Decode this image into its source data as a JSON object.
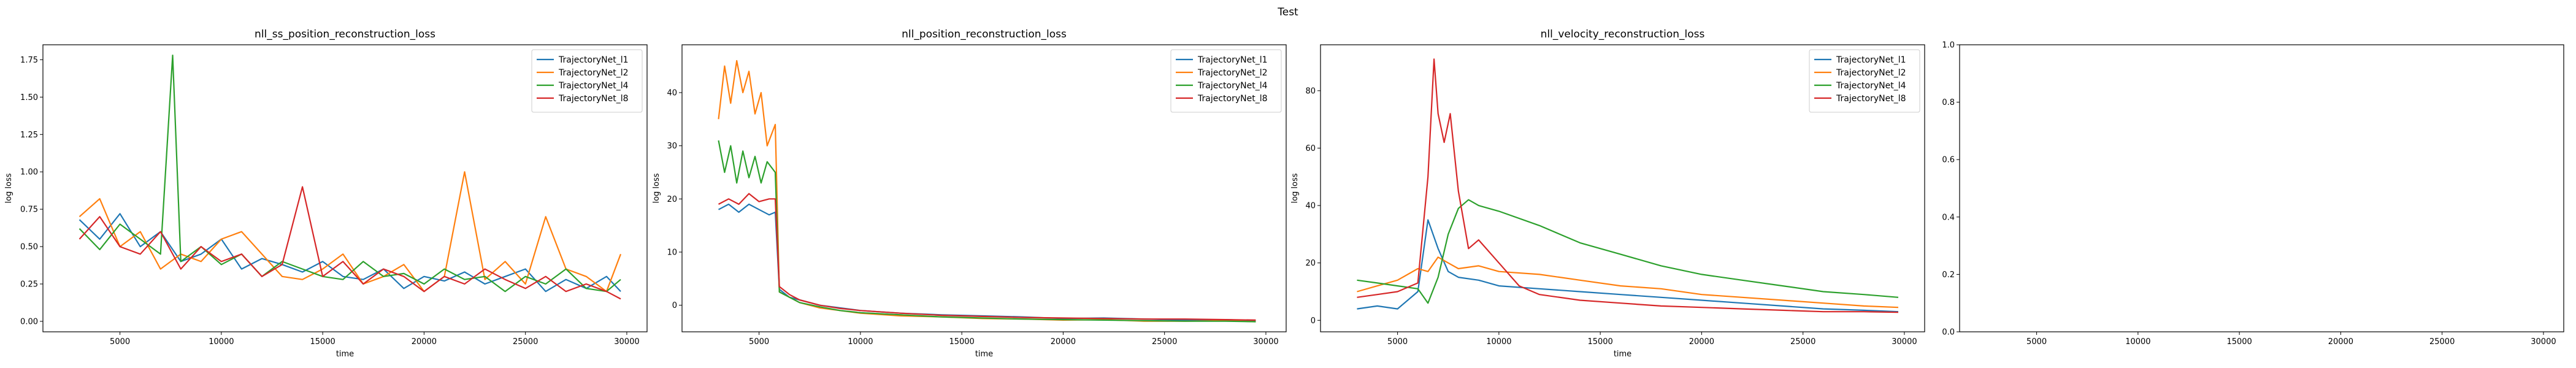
{
  "figure": {
    "suptitle": "Test"
  },
  "chart_data": [
    {
      "type": "line",
      "title": "nll_ss_position_reconstruction_loss",
      "xlabel": "time",
      "ylabel": "log loss",
      "xlim": [
        1200,
        31000
      ],
      "ylim": [
        -0.07,
        1.85
      ],
      "xticks": [
        5000,
        10000,
        15000,
        20000,
        25000,
        30000
      ],
      "yticks": [
        0.0,
        0.25,
        0.5,
        0.75,
        1.0,
        1.25,
        1.5,
        1.75
      ],
      "ytick_labels": [
        "0.00",
        "0.25",
        "0.50",
        "0.75",
        "1.00",
        "1.25",
        "1.50",
        "1.75"
      ],
      "legend_position": "upper right",
      "series": [
        {
          "name": "TrajectoryNet_l1",
          "color": "#1f77b4",
          "x": [
            3000,
            4000,
            5000,
            6000,
            7000,
            8000,
            9000,
            10000,
            11000,
            12000,
            13000,
            14000,
            15000,
            16000,
            17000,
            18000,
            19000,
            20000,
            21000,
            22000,
            23000,
            24000,
            25000,
            26000,
            27000,
            28000,
            29000,
            29700
          ],
          "y": [
            0.68,
            0.55,
            0.72,
            0.5,
            0.6,
            0.4,
            0.45,
            0.55,
            0.35,
            0.42,
            0.38,
            0.33,
            0.4,
            0.3,
            0.28,
            0.35,
            0.22,
            0.3,
            0.27,
            0.33,
            0.25,
            0.3,
            0.35,
            0.2,
            0.28,
            0.22,
            0.3,
            0.2
          ]
        },
        {
          "name": "TrajectoryNet_l2",
          "color": "#ff7f0e",
          "x": [
            3000,
            4000,
            5000,
            6000,
            7000,
            8000,
            9000,
            10000,
            11000,
            12000,
            13000,
            14000,
            15000,
            16000,
            17000,
            18000,
            19000,
            20000,
            21000,
            22000,
            23000,
            24000,
            25000,
            26000,
            27000,
            28000,
            29000,
            29700
          ],
          "y": [
            0.7,
            0.82,
            0.5,
            0.6,
            0.35,
            0.45,
            0.4,
            0.55,
            0.6,
            0.45,
            0.3,
            0.28,
            0.35,
            0.45,
            0.25,
            0.3,
            0.38,
            0.2,
            0.3,
            1.0,
            0.28,
            0.4,
            0.25,
            0.7,
            0.35,
            0.3,
            0.2,
            0.45
          ]
        },
        {
          "name": "TrajectoryNet_l4",
          "color": "#2ca02c",
          "x": [
            3000,
            4000,
            5000,
            6000,
            7000,
            7600,
            8000,
            9000,
            10000,
            11000,
            12000,
            13000,
            14000,
            15000,
            16000,
            17000,
            18000,
            19000,
            20000,
            21000,
            22000,
            23000,
            24000,
            25000,
            26000,
            27000,
            28000,
            29000,
            29700
          ],
          "y": [
            0.62,
            0.48,
            0.65,
            0.55,
            0.45,
            1.78,
            0.4,
            0.5,
            0.38,
            0.45,
            0.3,
            0.4,
            0.35,
            0.3,
            0.28,
            0.4,
            0.3,
            0.32,
            0.25,
            0.35,
            0.28,
            0.3,
            0.2,
            0.3,
            0.25,
            0.35,
            0.22,
            0.2,
            0.28
          ]
        },
        {
          "name": "TrajectoryNet_l8",
          "color": "#d62728",
          "x": [
            3000,
            4000,
            5000,
            6000,
            7000,
            8000,
            9000,
            10000,
            11000,
            12000,
            13000,
            14000,
            15000,
            16000,
            17000,
            18000,
            19000,
            20000,
            21000,
            22000,
            23000,
            24000,
            25000,
            26000,
            27000,
            28000,
            29000,
            29700
          ],
          "y": [
            0.55,
            0.7,
            0.5,
            0.45,
            0.6,
            0.35,
            0.5,
            0.4,
            0.45,
            0.3,
            0.38,
            0.9,
            0.3,
            0.4,
            0.25,
            0.35,
            0.3,
            0.2,
            0.3,
            0.25,
            0.35,
            0.28,
            0.22,
            0.3,
            0.2,
            0.25,
            0.2,
            0.15
          ]
        }
      ]
    },
    {
      "type": "line",
      "title": "nll_position_reconstruction_loss",
      "xlabel": "time",
      "ylabel": "log loss",
      "xlim": [
        1200,
        31000
      ],
      "ylim": [
        -5,
        49
      ],
      "xticks": [
        5000,
        10000,
        15000,
        20000,
        25000,
        30000
      ],
      "yticks": [
        0,
        10,
        20,
        30,
        40
      ],
      "legend_position": "upper right",
      "series": [
        {
          "name": "TrajectoryNet_l1",
          "color": "#1f77b4",
          "x": [
            3000,
            3500,
            4000,
            4500,
            5000,
            5500,
            5800,
            6000,
            6500,
            7000,
            8000,
            9000,
            10000,
            12000,
            14000,
            16000,
            18000,
            20000,
            22000,
            24000,
            26000,
            28000,
            29500
          ],
          "y": [
            18,
            19,
            17.5,
            19,
            18,
            17,
            17.5,
            3,
            1.5,
            1,
            0,
            -0.5,
            -1,
            -1.5,
            -1.8,
            -2,
            -2.2,
            -2.5,
            -2.4,
            -2.6,
            -2.8,
            -2.7,
            -2.9
          ]
        },
        {
          "name": "TrajectoryNet_l2",
          "color": "#ff7f0e",
          "x": [
            3000,
            3300,
            3600,
            3900,
            4200,
            4500,
            4800,
            5100,
            5400,
            5800,
            6000,
            6500,
            7000,
            8000,
            9000,
            10000,
            12000,
            14000,
            16000,
            18000,
            20000,
            22000,
            24000,
            26000,
            28000,
            29500
          ],
          "y": [
            35,
            45,
            38,
            46,
            40,
            44,
            36,
            40,
            30,
            34,
            2.5,
            1.5,
            0.5,
            -0.5,
            -1,
            -1.5,
            -2,
            -2.2,
            -2.5,
            -2.6,
            -2.8,
            -2.7,
            -3,
            -3,
            -2.9,
            -3.1
          ]
        },
        {
          "name": "TrajectoryNet_l4",
          "color": "#2ca02c",
          "x": [
            3000,
            3300,
            3600,
            3900,
            4200,
            4500,
            4800,
            5100,
            5400,
            5800,
            6000,
            6500,
            7000,
            8000,
            9000,
            10000,
            12000,
            14000,
            16000,
            18000,
            20000,
            22000,
            24000,
            26000,
            28000,
            29500
          ],
          "y": [
            31,
            25,
            30,
            23,
            29,
            24,
            28,
            23,
            27,
            25,
            2.5,
            1.5,
            0.5,
            -0.3,
            -1,
            -1.4,
            -1.8,
            -2.2,
            -2.4,
            -2.6,
            -2.7,
            -2.8,
            -2.9,
            -3,
            -3,
            -3.1
          ]
        },
        {
          "name": "TrajectoryNet_l8",
          "color": "#d62728",
          "x": [
            3000,
            3500,
            4000,
            4500,
            5000,
            5500,
            5800,
            6000,
            6500,
            7000,
            8000,
            9000,
            10000,
            12000,
            14000,
            16000,
            18000,
            20000,
            22000,
            24000,
            26000,
            28000,
            29500
          ],
          "y": [
            19,
            20,
            19,
            21,
            19.5,
            20,
            20,
            3.5,
            2,
            1,
            0,
            -0.6,
            -1,
            -1.5,
            -1.9,
            -2.1,
            -2.3,
            -2.4,
            -2.5,
            -2.6,
            -2.6,
            -2.7,
            -2.8
          ]
        }
      ]
    },
    {
      "type": "line",
      "title": "nll_velocity_reconstruction_loss",
      "xlabel": "time",
      "ylabel": "log loss",
      "xlim": [
        1200,
        31000
      ],
      "ylim": [
        -4,
        96
      ],
      "xticks": [
        5000,
        10000,
        15000,
        20000,
        25000,
        30000
      ],
      "yticks": [
        0,
        20,
        40,
        60,
        80
      ],
      "legend_position": "upper right",
      "series": [
        {
          "name": "TrajectoryNet_l1",
          "color": "#1f77b4",
          "x": [
            3000,
            4000,
            5000,
            6000,
            6500,
            7000,
            7500,
            8000,
            9000,
            10000,
            12000,
            14000,
            16000,
            18000,
            20000,
            22000,
            24000,
            26000,
            28000,
            29700
          ],
          "y": [
            4,
            5,
            4,
            10,
            35,
            25,
            17,
            15,
            14,
            12,
            11,
            10,
            9,
            8,
            7,
            6,
            5,
            4,
            3.5,
            3
          ]
        },
        {
          "name": "TrajectoryNet_l2",
          "color": "#ff7f0e",
          "x": [
            3000,
            4000,
            5000,
            6000,
            6500,
            7000,
            7500,
            8000,
            9000,
            10000,
            12000,
            14000,
            16000,
            18000,
            20000,
            22000,
            24000,
            26000,
            28000,
            29700
          ],
          "y": [
            10,
            12,
            14,
            18,
            17,
            22,
            20,
            18,
            19,
            17,
            16,
            14,
            12,
            11,
            9,
            8,
            7,
            6,
            5,
            4.5
          ]
        },
        {
          "name": "TrajectoryNet_l4",
          "color": "#2ca02c",
          "x": [
            3000,
            4000,
            5000,
            6000,
            6500,
            7000,
            7500,
            8000,
            8500,
            9000,
            10000,
            12000,
            14000,
            16000,
            18000,
            20000,
            22000,
            24000,
            26000,
            28000,
            29700
          ],
          "y": [
            14,
            13,
            12,
            11,
            6,
            15,
            30,
            39,
            42,
            40,
            38,
            33,
            27,
            23,
            19,
            16,
            14,
            12,
            10,
            9,
            8
          ]
        },
        {
          "name": "TrajectoryNet_l8",
          "color": "#d62728",
          "x": [
            3000,
            4000,
            5000,
            6000,
            6500,
            6800,
            7000,
            7300,
            7600,
            8000,
            8500,
            9000,
            10000,
            11000,
            12000,
            14000,
            16000,
            18000,
            20000,
            22000,
            24000,
            26000,
            28000,
            29700
          ],
          "y": [
            8,
            9,
            10,
            13,
            50,
            91,
            72,
            62,
            72,
            45,
            25,
            28,
            20,
            12,
            9,
            7,
            6,
            5,
            4.5,
            4,
            3.5,
            3,
            3,
            2.8
          ]
        }
      ]
    },
    {
      "type": "line",
      "title": "",
      "xlabel": "",
      "ylabel": "",
      "xlim": [
        1200,
        31000
      ],
      "ylim": [
        0,
        1.0
      ],
      "xticks": [
        5000,
        10000,
        15000,
        20000,
        25000,
        30000
      ],
      "yticks": [
        0.0,
        0.2,
        0.4,
        0.6,
        0.8,
        1.0
      ],
      "ytick_labels": [
        "0.0",
        "0.2",
        "0.4",
        "0.6",
        "0.8",
        "1.0"
      ],
      "series": []
    }
  ]
}
